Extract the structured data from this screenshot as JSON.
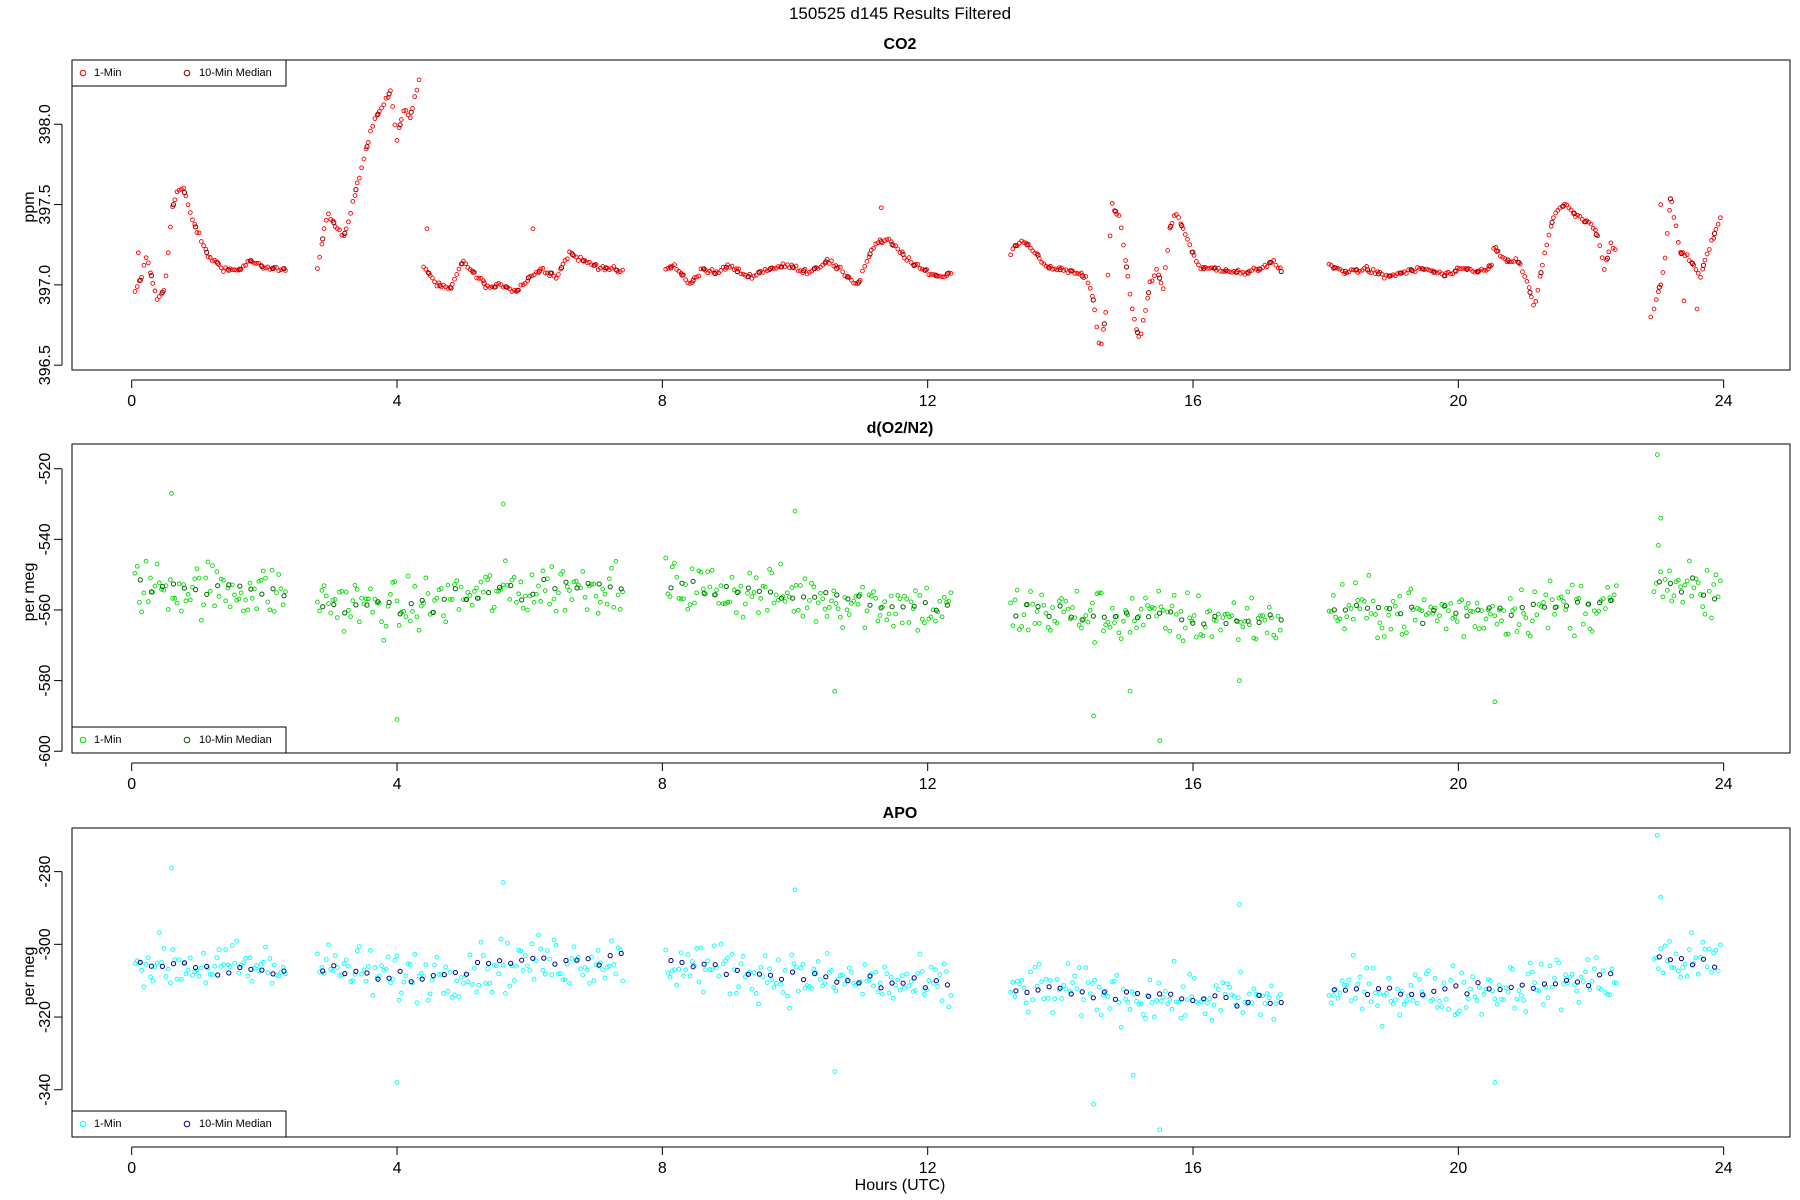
{
  "figure": {
    "title": "150525   d145   Results Filtered",
    "xlabel": "Hours (UTC)"
  },
  "chart_data": [
    {
      "type": "scatter",
      "title": "CO2",
      "ylabel": "ppm",
      "xlim": [
        -0.9,
        25.0
      ],
      "ylim": [
        396.47,
        398.4
      ],
      "xticks": [
        0,
        4,
        8,
        12,
        16,
        20,
        24
      ],
      "yticks": [
        396.5,
        397.0,
        397.5,
        398.0
      ],
      "ytick_labels": [
        "396.5",
        "397.0",
        "397.5",
        "398.0"
      ],
      "legend_position": "top-left",
      "series": [
        {
          "name": "1-Min",
          "color": "#ff0000"
        },
        {
          "name": "10-Min Median",
          "color": "#8b0000"
        }
      ],
      "segments": [
        [
          0.05,
          2.35
        ],
        [
          2.8,
          4.35
        ],
        [
          4.4,
          7.4
        ],
        [
          8.05,
          12.35
        ],
        [
          13.25,
          17.35
        ],
        [
          18.05,
          20.5
        ],
        [
          20.5,
          22.4
        ],
        [
          22.95,
          23.97
        ]
      ],
      "profile": [
        [
          0.05,
          396.95
        ],
        [
          0.15,
          397.05
        ],
        [
          0.22,
          397.18
        ],
        [
          0.3,
          397.05
        ],
        [
          0.38,
          396.9
        ],
        [
          0.5,
          396.98
        ],
        [
          0.6,
          397.45
        ],
        [
          0.68,
          397.58
        ],
        [
          0.78,
          397.6
        ],
        [
          0.88,
          397.45
        ],
        [
          1.0,
          397.32
        ],
        [
          1.15,
          397.18
        ],
        [
          1.4,
          397.1
        ],
        [
          1.6,
          397.09
        ],
        [
          1.8,
          397.15
        ],
        [
          2.0,
          397.1
        ],
        [
          2.35,
          397.1
        ],
        [
          2.8,
          397.1
        ],
        [
          2.95,
          397.45
        ],
        [
          3.2,
          397.3
        ],
        [
          3.45,
          397.7
        ],
        [
          3.6,
          397.95
        ],
        [
          3.75,
          398.1
        ],
        [
          3.9,
          398.2
        ],
        [
          4.0,
          397.9
        ],
        [
          4.1,
          398.1
        ],
        [
          4.2,
          398.05
        ],
        [
          4.35,
          398.3
        ],
        [
          4.4,
          397.12
        ],
        [
          4.6,
          397.0
        ],
        [
          4.8,
          396.97
        ],
        [
          5.0,
          397.15
        ],
        [
          5.2,
          397.05
        ],
        [
          5.4,
          396.98
        ],
        [
          5.6,
          397.0
        ],
        [
          5.8,
          396.96
        ],
        [
          6.0,
          397.05
        ],
        [
          6.2,
          397.1
        ],
        [
          6.4,
          397.05
        ],
        [
          6.6,
          397.2
        ],
        [
          6.8,
          397.15
        ],
        [
          7.0,
          397.12
        ],
        [
          7.2,
          397.1
        ],
        [
          7.4,
          397.08
        ],
        [
          8.05,
          397.1
        ],
        [
          8.2,
          397.12
        ],
        [
          8.4,
          397.0
        ],
        [
          8.6,
          397.1
        ],
        [
          8.8,
          397.07
        ],
        [
          9.0,
          397.12
        ],
        [
          9.3,
          397.05
        ],
        [
          9.6,
          397.1
        ],
        [
          9.9,
          397.12
        ],
        [
          10.2,
          397.08
        ],
        [
          10.5,
          397.15
        ],
        [
          10.8,
          397.05
        ],
        [
          10.95,
          397.0
        ],
        [
          11.05,
          397.12
        ],
        [
          11.2,
          397.25
        ],
        [
          11.4,
          397.28
        ],
        [
          11.6,
          397.2
        ],
        [
          11.8,
          397.12
        ],
        [
          12.0,
          397.08
        ],
        [
          12.2,
          397.05
        ],
        [
          12.35,
          397.07
        ],
        [
          13.25,
          397.2
        ],
        [
          13.4,
          397.28
        ],
        [
          13.6,
          397.22
        ],
        [
          13.8,
          397.1
        ],
        [
          14.0,
          397.1
        ],
        [
          14.2,
          397.08
        ],
        [
          14.4,
          397.05
        ],
        [
          14.5,
          396.9
        ],
        [
          14.6,
          396.6
        ],
        [
          14.68,
          396.8
        ],
        [
          14.78,
          397.5
        ],
        [
          14.9,
          397.4
        ],
        [
          15.0,
          397.1
        ],
        [
          15.1,
          396.8
        ],
        [
          15.2,
          396.65
        ],
        [
          15.35,
          397.0
        ],
        [
          15.45,
          397.1
        ],
        [
          15.55,
          396.98
        ],
        [
          15.65,
          397.35
        ],
        [
          15.75,
          397.45
        ],
        [
          15.9,
          397.3
        ],
        [
          16.1,
          397.1
        ],
        [
          16.4,
          397.1
        ],
        [
          16.8,
          397.07
        ],
        [
          17.0,
          397.1
        ],
        [
          17.2,
          397.15
        ],
        [
          17.35,
          397.07
        ],
        [
          18.05,
          397.12
        ],
        [
          18.3,
          397.08
        ],
        [
          18.6,
          397.1
        ],
        [
          18.9,
          397.05
        ],
        [
          19.2,
          397.08
        ],
        [
          19.5,
          397.1
        ],
        [
          19.8,
          397.06
        ],
        [
          20.1,
          397.1
        ],
        [
          20.3,
          397.08
        ],
        [
          20.5,
          397.12
        ],
        [
          20.5,
          397.25
        ],
        [
          20.7,
          397.15
        ],
        [
          20.9,
          397.15
        ],
        [
          21.05,
          397.0
        ],
        [
          21.15,
          396.85
        ],
        [
          21.3,
          397.2
        ],
        [
          21.45,
          397.45
        ],
        [
          21.6,
          397.5
        ],
        [
          21.8,
          397.42
        ],
        [
          22.0,
          397.38
        ],
        [
          22.1,
          397.3
        ],
        [
          22.2,
          397.1
        ],
        [
          22.3,
          397.25
        ],
        [
          22.4,
          397.2
        ],
        [
          22.95,
          396.85
        ],
        [
          23.1,
          397.1
        ],
        [
          23.2,
          397.55
        ],
        [
          23.35,
          397.2
        ],
        [
          23.5,
          397.15
        ],
        [
          23.65,
          397.05
        ],
        [
          23.75,
          397.2
        ],
        [
          23.85,
          397.3
        ],
        [
          23.97,
          397.45
        ]
      ],
      "noise": 0.012,
      "outliers": [
        [
          0.1,
          397.2
        ],
        [
          23.05,
          397.5
        ],
        [
          23.4,
          396.9
        ],
        [
          23.6,
          396.85
        ],
        [
          22.9,
          396.8
        ],
        [
          6.05,
          397.35
        ],
        [
          4.45,
          397.35
        ],
        [
          11.3,
          397.48
        ]
      ]
    },
    {
      "type": "scatter",
      "title": "d(O2/N2)",
      "ylabel": "per meg",
      "xlim": [
        -0.9,
        25.0
      ],
      "ylim": [
        -600.5,
        -513
      ],
      "xticks": [
        0,
        4,
        8,
        12,
        16,
        20,
        24
      ],
      "yticks": [
        -600,
        -580,
        -560,
        -540,
        -520
      ],
      "ytick_labels": [
        "-600",
        "-580",
        "-560",
        "-540",
        "-520"
      ],
      "legend_position": "bottom-left",
      "series": [
        {
          "name": "1-Min",
          "color": "#00dd00"
        },
        {
          "name": "10-Min Median",
          "color": "#006400"
        }
      ],
      "segments": [
        [
          0.05,
          2.35
        ],
        [
          2.8,
          7.4
        ],
        [
          8.05,
          12.35
        ],
        [
          13.25,
          17.35
        ],
        [
          18.05,
          22.4
        ],
        [
          22.95,
          23.97
        ]
      ],
      "profile": [
        [
          0.0,
          -553
        ],
        [
          2.35,
          -555
        ],
        [
          2.8,
          -557
        ],
        [
          4.0,
          -560
        ],
        [
          5.0,
          -556
        ],
        [
          6.0,
          -554
        ],
        [
          7.4,
          -553
        ],
        [
          8.05,
          -553
        ],
        [
          10.0,
          -556
        ],
        [
          12.35,
          -560
        ],
        [
          13.25,
          -560
        ],
        [
          15.0,
          -562
        ],
        [
          17.35,
          -563
        ],
        [
          18.05,
          -560
        ],
        [
          20.0,
          -561
        ],
        [
          22.4,
          -558
        ],
        [
          22.95,
          -553
        ],
        [
          23.97,
          -554
        ]
      ],
      "noise": 5.5,
      "outliers": [
        [
          0.6,
          -527
        ],
        [
          4.0,
          -591
        ],
        [
          14.5,
          -590
        ],
        [
          15.5,
          -597
        ],
        [
          15.05,
          -583
        ],
        [
          10.6,
          -583
        ],
        [
          23.0,
          -516
        ],
        [
          23.05,
          -534
        ],
        [
          10.0,
          -532
        ],
        [
          5.6,
          -530
        ],
        [
          20.55,
          -586
        ],
        [
          16.7,
          -580
        ]
      ]
    },
    {
      "type": "scatter",
      "title": "APO",
      "ylabel": "per meg",
      "xlim": [
        -0.9,
        25.0
      ],
      "ylim": [
        -353,
        -268
      ],
      "xticks": [
        0,
        4,
        8,
        12,
        16,
        20,
        24
      ],
      "yticks": [
        -340,
        -320,
        -300,
        -280
      ],
      "ytick_labels": [
        "-340",
        "-320",
        "-300",
        "-280"
      ],
      "legend_position": "bottom-left",
      "series": [
        {
          "name": "1-Min",
          "color": "#00ffff"
        },
        {
          "name": "10-Min Median",
          "color": "#00008b"
        }
      ],
      "segments": [
        [
          0.05,
          2.35
        ],
        [
          2.8,
          7.4
        ],
        [
          8.05,
          12.35
        ],
        [
          13.25,
          17.35
        ],
        [
          18.05,
          22.4
        ],
        [
          22.95,
          23.97
        ]
      ],
      "profile": [
        [
          0.0,
          -305
        ],
        [
          2.35,
          -307
        ],
        [
          2.8,
          -306
        ],
        [
          4.0,
          -309
        ],
        [
          5.0,
          -307
        ],
        [
          6.0,
          -305
        ],
        [
          7.4,
          -304
        ],
        [
          8.05,
          -305
        ],
        [
          10.0,
          -309
        ],
        [
          12.35,
          -312
        ],
        [
          13.25,
          -312
        ],
        [
          15.0,
          -314
        ],
        [
          17.35,
          -316
        ],
        [
          18.05,
          -313
        ],
        [
          20.0,
          -313
        ],
        [
          22.4,
          -309
        ],
        [
          22.95,
          -304
        ],
        [
          23.97,
          -305
        ]
      ],
      "noise": 5.0,
      "outliers": [
        [
          0.6,
          -279
        ],
        [
          4.0,
          -338
        ],
        [
          14.5,
          -344
        ],
        [
          15.5,
          -351
        ],
        [
          15.1,
          -336
        ],
        [
          10.6,
          -335
        ],
        [
          23.0,
          -270
        ],
        [
          23.05,
          -287
        ],
        [
          10.0,
          -285
        ],
        [
          5.6,
          -283
        ],
        [
          20.55,
          -338
        ],
        [
          16.7,
          -289
        ]
      ]
    }
  ]
}
